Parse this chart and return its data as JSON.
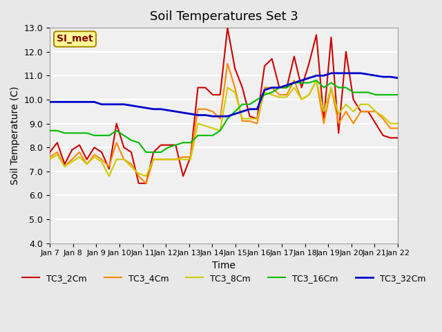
{
  "title": "Soil Temperatures Set 3",
  "xlabel": "Time",
  "ylabel": "Soil Temperature (C)",
  "ylim": [
    4.0,
    13.0
  ],
  "yticks": [
    4.0,
    5.0,
    6.0,
    7.0,
    8.0,
    9.0,
    10.0,
    11.0,
    12.0,
    13.0
  ],
  "xtick_labels": [
    "Jan 7",
    "Jan 8",
    "Jan 9",
    "Jan 10",
    "Jan 11",
    "Jan 12",
    "Jan 13",
    "Jan 14",
    "Jan 15",
    "Jan 16",
    "Jan 17",
    "Jan 18",
    "Jan 19",
    "Jan 20",
    "Jan 21",
    "Jan 22"
  ],
  "bg_color": "#e8e8e8",
  "plot_bg_color": "#f0f0f0",
  "grid_color": "#ffffff",
  "annotation_text": "SI_met",
  "annotation_bg": "#ffff99",
  "annotation_border": "#aa8800",
  "annotation_fg": "#880000",
  "series": {
    "TC3_2Cm": {
      "color": "#cc0000",
      "lw": 1.5
    },
    "TC3_4Cm": {
      "color": "#ff8800",
      "lw": 1.5
    },
    "TC3_8Cm": {
      "color": "#cccc00",
      "lw": 1.5
    },
    "TC3_16Cm": {
      "color": "#00bb00",
      "lw": 1.5
    },
    "TC3_32Cm": {
      "color": "#0000cc",
      "lw": 2.0
    }
  },
  "TC3_2Cm": [
    7.8,
    8.2,
    7.3,
    7.9,
    8.1,
    7.5,
    8.0,
    7.8,
    7.1,
    9.0,
    8.0,
    7.8,
    6.5,
    6.5,
    7.8,
    8.1,
    8.1,
    8.1,
    6.8,
    7.6,
    10.5,
    10.5,
    10.2,
    10.2,
    13.0,
    11.3,
    10.5,
    9.3,
    9.2,
    11.4,
    11.7,
    10.5,
    10.5,
    11.8,
    10.5,
    11.5,
    12.7,
    9.2,
    12.6,
    8.6,
    12.0,
    10.0,
    9.5,
    9.5,
    9.0,
    8.5,
    8.4,
    8.4
  ],
  "TC3_4Cm": [
    7.6,
    7.8,
    7.2,
    7.5,
    7.8,
    7.3,
    7.7,
    7.5,
    7.2,
    8.2,
    7.5,
    7.3,
    6.8,
    6.5,
    7.5,
    7.5,
    7.5,
    7.5,
    7.6,
    7.6,
    9.6,
    9.6,
    9.5,
    9.2,
    11.5,
    10.5,
    9.1,
    9.1,
    9.0,
    10.5,
    10.5,
    10.2,
    10.2,
    10.8,
    10.0,
    10.2,
    10.8,
    9.0,
    10.5,
    9.0,
    9.5,
    9.0,
    9.5,
    9.5,
    9.5,
    9.2,
    8.8,
    8.8
  ],
  "TC3_8Cm": [
    7.5,
    7.7,
    7.2,
    7.4,
    7.6,
    7.3,
    7.6,
    7.4,
    6.8,
    7.5,
    7.5,
    7.2,
    6.9,
    6.8,
    7.5,
    7.5,
    7.5,
    7.5,
    7.5,
    7.5,
    9.0,
    8.9,
    8.8,
    8.7,
    10.5,
    10.3,
    9.2,
    9.2,
    9.2,
    10.3,
    10.2,
    10.1,
    10.1,
    10.5,
    10.0,
    10.2,
    10.8,
    9.5,
    10.5,
    9.4,
    9.8,
    9.5,
    9.8,
    9.8,
    9.5,
    9.3,
    9.0,
    9.0
  ],
  "TC3_16Cm": [
    8.7,
    8.7,
    8.6,
    8.6,
    8.6,
    8.6,
    8.5,
    8.5,
    8.5,
    8.7,
    8.5,
    8.3,
    8.2,
    7.8,
    7.8,
    7.8,
    8.0,
    8.1,
    8.2,
    8.2,
    8.5,
    8.5,
    8.5,
    8.7,
    9.2,
    9.5,
    9.8,
    9.8,
    10.0,
    10.2,
    10.3,
    10.5,
    10.5,
    10.7,
    10.7,
    10.7,
    10.8,
    10.5,
    10.7,
    10.5,
    10.5,
    10.3,
    10.3,
    10.3,
    10.2,
    10.2,
    10.2,
    10.2
  ],
  "TC3_32Cm": [
    9.9,
    9.9,
    9.9,
    9.9,
    9.9,
    9.9,
    9.9,
    9.8,
    9.8,
    9.8,
    9.8,
    9.75,
    9.7,
    9.65,
    9.6,
    9.6,
    9.55,
    9.5,
    9.45,
    9.4,
    9.35,
    9.35,
    9.3,
    9.3,
    9.3,
    9.4,
    9.5,
    9.6,
    9.6,
    10.4,
    10.5,
    10.5,
    10.6,
    10.7,
    10.8,
    10.9,
    11.0,
    11.0,
    11.1,
    11.1,
    11.1,
    11.1,
    11.1,
    11.05,
    11.0,
    10.95,
    10.95,
    10.9
  ]
}
